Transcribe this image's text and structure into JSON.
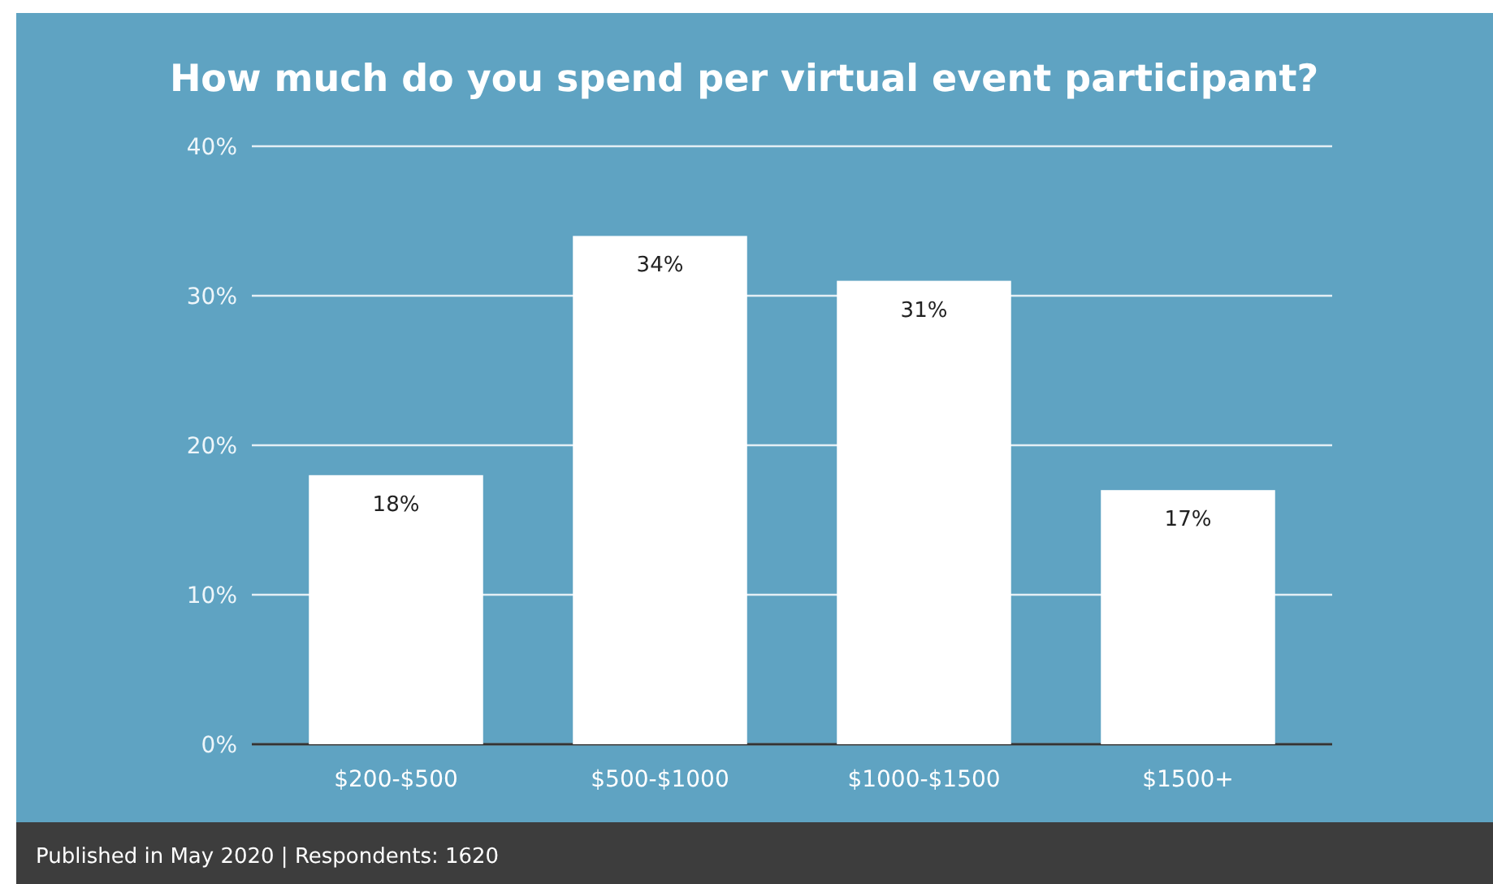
{
  "chart_data": {
    "type": "bar",
    "title": "How much do you spend per virtual event participant?",
    "categories": [
      "$200-$500",
      "$500-$1000",
      "$1000-$1500",
      "$1500+"
    ],
    "values": [
      18,
      34,
      31,
      17
    ],
    "value_labels": [
      "18%",
      "34%",
      "31%",
      "17%"
    ],
    "color": "#ffffff",
    "ylim": [
      0,
      40
    ],
    "yticks": [
      {
        "value": 0,
        "label": "0%"
      },
      {
        "value": 10,
        "label": "10%"
      },
      {
        "value": 20,
        "label": "20%"
      },
      {
        "value": 30,
        "label": "30%"
      },
      {
        "value": 40,
        "label": "40%"
      }
    ],
    "grid": "y",
    "annotations": [
      "Published in May 2020 | Respondents: 1620"
    ]
  }
}
